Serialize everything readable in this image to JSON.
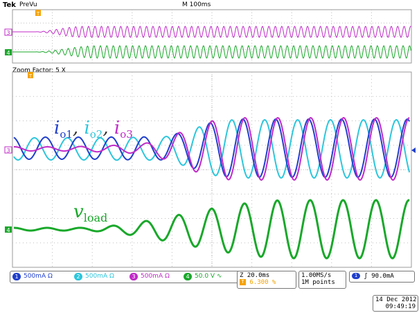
{
  "header": {
    "brand": "Tek",
    "mode": "PreVu",
    "timebase": "M 100ms"
  },
  "zoom": {
    "label": "Zoom Factor: 5 X"
  },
  "annotations": {
    "currents": "i₀₁, i₀₂, i₀₃",
    "voltage": "v_load",
    "currents_parts": {
      "sym": "i",
      "sub1": "o1",
      "sub2": "o2",
      "sub3": "o3"
    },
    "voltage_parts": {
      "sym": "v",
      "sub": "load"
    }
  },
  "channels": [
    {
      "num": "1",
      "scale": "500mA Ω",
      "color": "#1f3fcc"
    },
    {
      "num": "2",
      "scale": "500mA Ω",
      "color": "#2cc6dc"
    },
    {
      "num": "3",
      "scale": "500mA Ω",
      "color": "#c02ac8"
    },
    {
      "num": "4",
      "scale": "50.0 V ∿",
      "color": "#19a82a"
    }
  ],
  "trace_markers": {
    "ch3": "3",
    "ch4": "4"
  },
  "horizontal": {
    "zoom_time": "Z 20.0ms",
    "position": "6.300 %",
    "position_flag": "T"
  },
  "acquisition": {
    "rate": "1.00MS/s",
    "points": "1M points"
  },
  "trigger": {
    "source": "1",
    "slope": "ʃ",
    "level": "90.0mA"
  },
  "datetime": {
    "date": "14 Dec  2012",
    "time": "09:49:19"
  },
  "colors": {
    "ch1": "#1f3fcc",
    "ch2": "#2cc6dc",
    "ch3": "#c02ac8",
    "ch4": "#19a82a",
    "grid": "#bdbdbd",
    "marker": "#f5a300"
  }
}
